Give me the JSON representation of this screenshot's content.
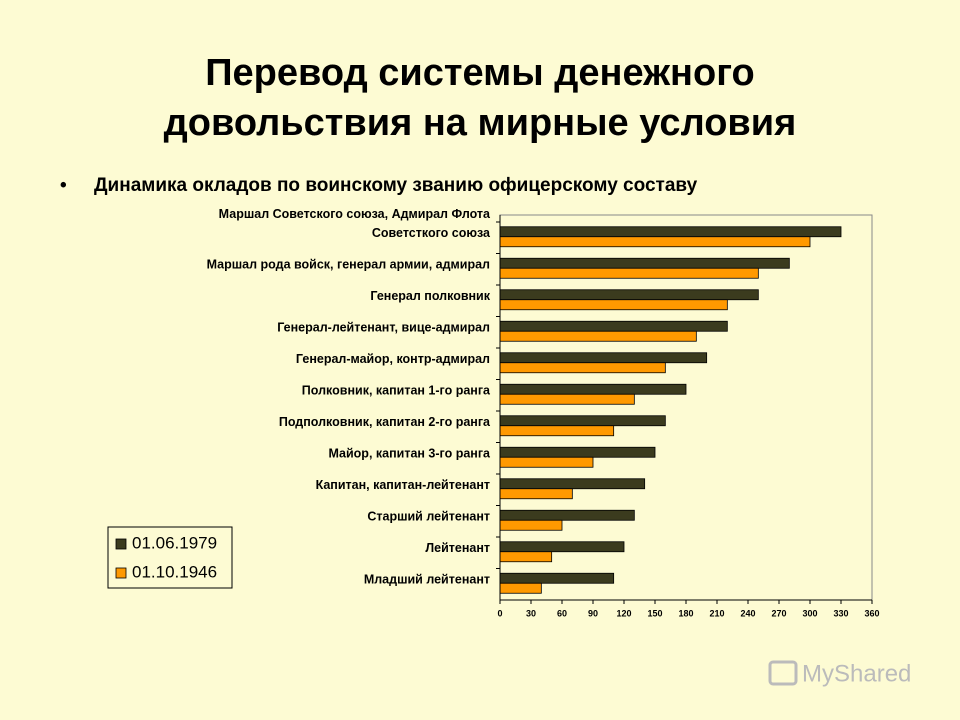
{
  "title": [
    "Перевод системы денежного",
    "довольствия на мирные условия"
  ],
  "subtitle": "Динамика окладов по воинскому званию офицерскому составу",
  "watermark": "MyShared",
  "chart_data": {
    "type": "bar",
    "orientation": "horizontal",
    "categories": [
      "Маршал Советского союза, Адмирал Флота\nСоветсткого союза",
      "Маршал рода войск, генерал армии, адмирал",
      "Генерал полковник",
      "Генерал-лейтенант, вице-адмирал",
      "Генерал-майор, контр-адмирал",
      "Полковник, капитан 1-го ранга",
      "Подполковник, капитан 2-го ранга",
      "Майор, капитан 3-го ранга",
      "Капитан, капитан-лейтенант",
      "Старший лейтенант",
      "Лейтенант",
      "Младший лейтенант"
    ],
    "series": [
      {
        "name": "01.06.1979",
        "color": "#3b3b1e",
        "values": [
          330,
          280,
          250,
          220,
          200,
          180,
          160,
          150,
          140,
          130,
          120,
          110
        ]
      },
      {
        "name": "01.10.1946",
        "color": "#ff9900",
        "values": [
          300,
          250,
          220,
          190,
          160,
          130,
          110,
          90,
          70,
          60,
          50,
          40
        ]
      }
    ],
    "xlim": [
      0,
      360
    ],
    "xticks": [
      0,
      30,
      60,
      90,
      120,
      150,
      180,
      210,
      240,
      270,
      300,
      330,
      360
    ],
    "grid": false,
    "legend": "left"
  }
}
